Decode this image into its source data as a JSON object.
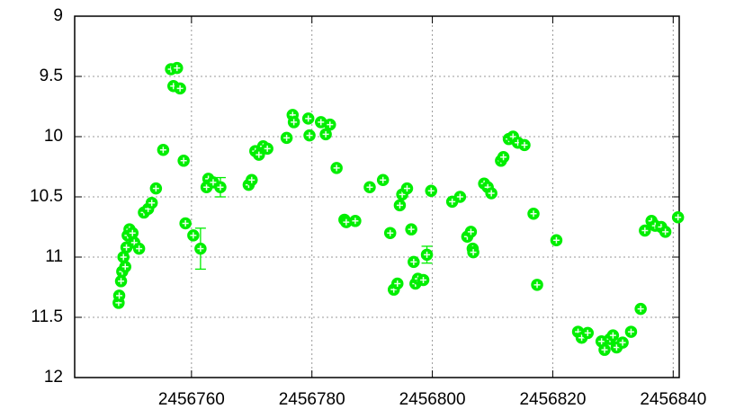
{
  "chart_data": {
    "type": "scatter",
    "color": "#00ee00",
    "grid": true,
    "xlim": [
      2456740.6,
      2456841
    ],
    "ylim": [
      12,
      9
    ],
    "xticks": [
      2456760,
      2456780,
      2456800,
      2456820,
      2456840
    ],
    "yticks": [
      9,
      9.5,
      10,
      10.5,
      11,
      11.5,
      12
    ],
    "x": [
      2456747.9,
      2456748.0,
      2456748.3,
      2456748.5,
      2456748.7,
      2456749.0,
      2456749.2,
      2456749.4,
      2456749.7,
      2456750.2,
      2456750.5,
      2456751.3,
      2456752.1,
      2456752.8,
      2456753.4,
      2456754.1,
      2456755.3,
      2456756.6,
      2456757.0,
      2456757.6,
      2456758.1,
      2456758.7,
      2456759.0,
      2456760.3,
      2456761.5,
      2456762.5,
      2456762.8,
      2456763.6,
      2456764.8,
      2456769.5,
      2456770.0,
      2456770.6,
      2456771.2,
      2456771.9,
      2456772.6,
      2456775.8,
      2456776.8,
      2456777.0,
      2456779.4,
      2456779.6,
      2456781.5,
      2456782.3,
      2456783.0,
      2456784.1,
      2456785.4,
      2456785.7,
      2456787.2,
      2456789.6,
      2456791.8,
      2456793.0,
      2456793.6,
      2456794.2,
      2456794.6,
      2456795.0,
      2456795.8,
      2456796.5,
      2456796.9,
      2456797.2,
      2456797.6,
      2456798.5,
      2456799.1,
      2456799.8,
      2456803.3,
      2456804.6,
      2456805.8,
      2456806.4,
      2456806.7,
      2456806.8,
      2456808.6,
      2456809.2,
      2456809.8,
      2456811.4,
      2456811.8,
      2456812.7,
      2456813.4,
      2456814.2,
      2456815.3,
      2456816.8,
      2456817.4,
      2456820.6,
      2456824.2,
      2456824.8,
      2456825.8,
      2456828.1,
      2456828.6,
      2456829.5,
      2456830.0,
      2456830.6,
      2456831.6,
      2456833.0,
      2456834.6,
      2456835.3,
      2456836.4,
      2456837.0,
      2456838.0,
      2456838.7,
      2456840.8
    ],
    "values": [
      11.38,
      11.32,
      11.2,
      11.12,
      11.0,
      11.08,
      10.92,
      10.82,
      10.77,
      10.8,
      10.88,
      10.93,
      10.63,
      10.6,
      10.55,
      10.43,
      10.11,
      9.44,
      9.58,
      9.43,
      9.6,
      10.2,
      10.72,
      10.82,
      10.93,
      10.42,
      10.35,
      10.38,
      10.42,
      10.4,
      10.36,
      10.12,
      10.15,
      10.08,
      10.1,
      10.01,
      9.82,
      9.88,
      9.85,
      9.99,
      9.88,
      9.98,
      9.9,
      10.26,
      10.69,
      10.71,
      10.7,
      10.42,
      10.36,
      10.8,
      11.27,
      11.22,
      10.57,
      10.48,
      10.43,
      10.77,
      11.04,
      11.22,
      11.18,
      11.19,
      10.98,
      10.45,
      10.54,
      10.5,
      10.83,
      10.79,
      10.93,
      10.96,
      10.39,
      10.42,
      10.47,
      10.2,
      10.17,
      10.02,
      10.0,
      10.05,
      10.07,
      10.64,
      11.23,
      10.86,
      11.62,
      11.67,
      11.63,
      11.7,
      11.77,
      11.68,
      11.65,
      11.75,
      11.71,
      11.62,
      11.43,
      10.78,
      10.7,
      10.74,
      10.75,
      10.79,
      10.67
    ],
    "errors": [
      null,
      null,
      null,
      null,
      null,
      null,
      null,
      null,
      null,
      null,
      null,
      null,
      null,
      null,
      null,
      null,
      null,
      null,
      null,
      null,
      null,
      null,
      null,
      null,
      0.17,
      null,
      null,
      null,
      0.08,
      null,
      null,
      null,
      null,
      null,
      null,
      null,
      null,
      null,
      null,
      null,
      null,
      null,
      null,
      null,
      null,
      null,
      null,
      null,
      null,
      null,
      null,
      null,
      null,
      null,
      null,
      null,
      null,
      null,
      null,
      null,
      0.07,
      null,
      null,
      null,
      null,
      null,
      null,
      null,
      null,
      null,
      null,
      null,
      null,
      null,
      null,
      null,
      null,
      null,
      null,
      null,
      null,
      null,
      null,
      null,
      null,
      null,
      null,
      null,
      null,
      null,
      null,
      null,
      null,
      null,
      null,
      null,
      null
    ]
  }
}
